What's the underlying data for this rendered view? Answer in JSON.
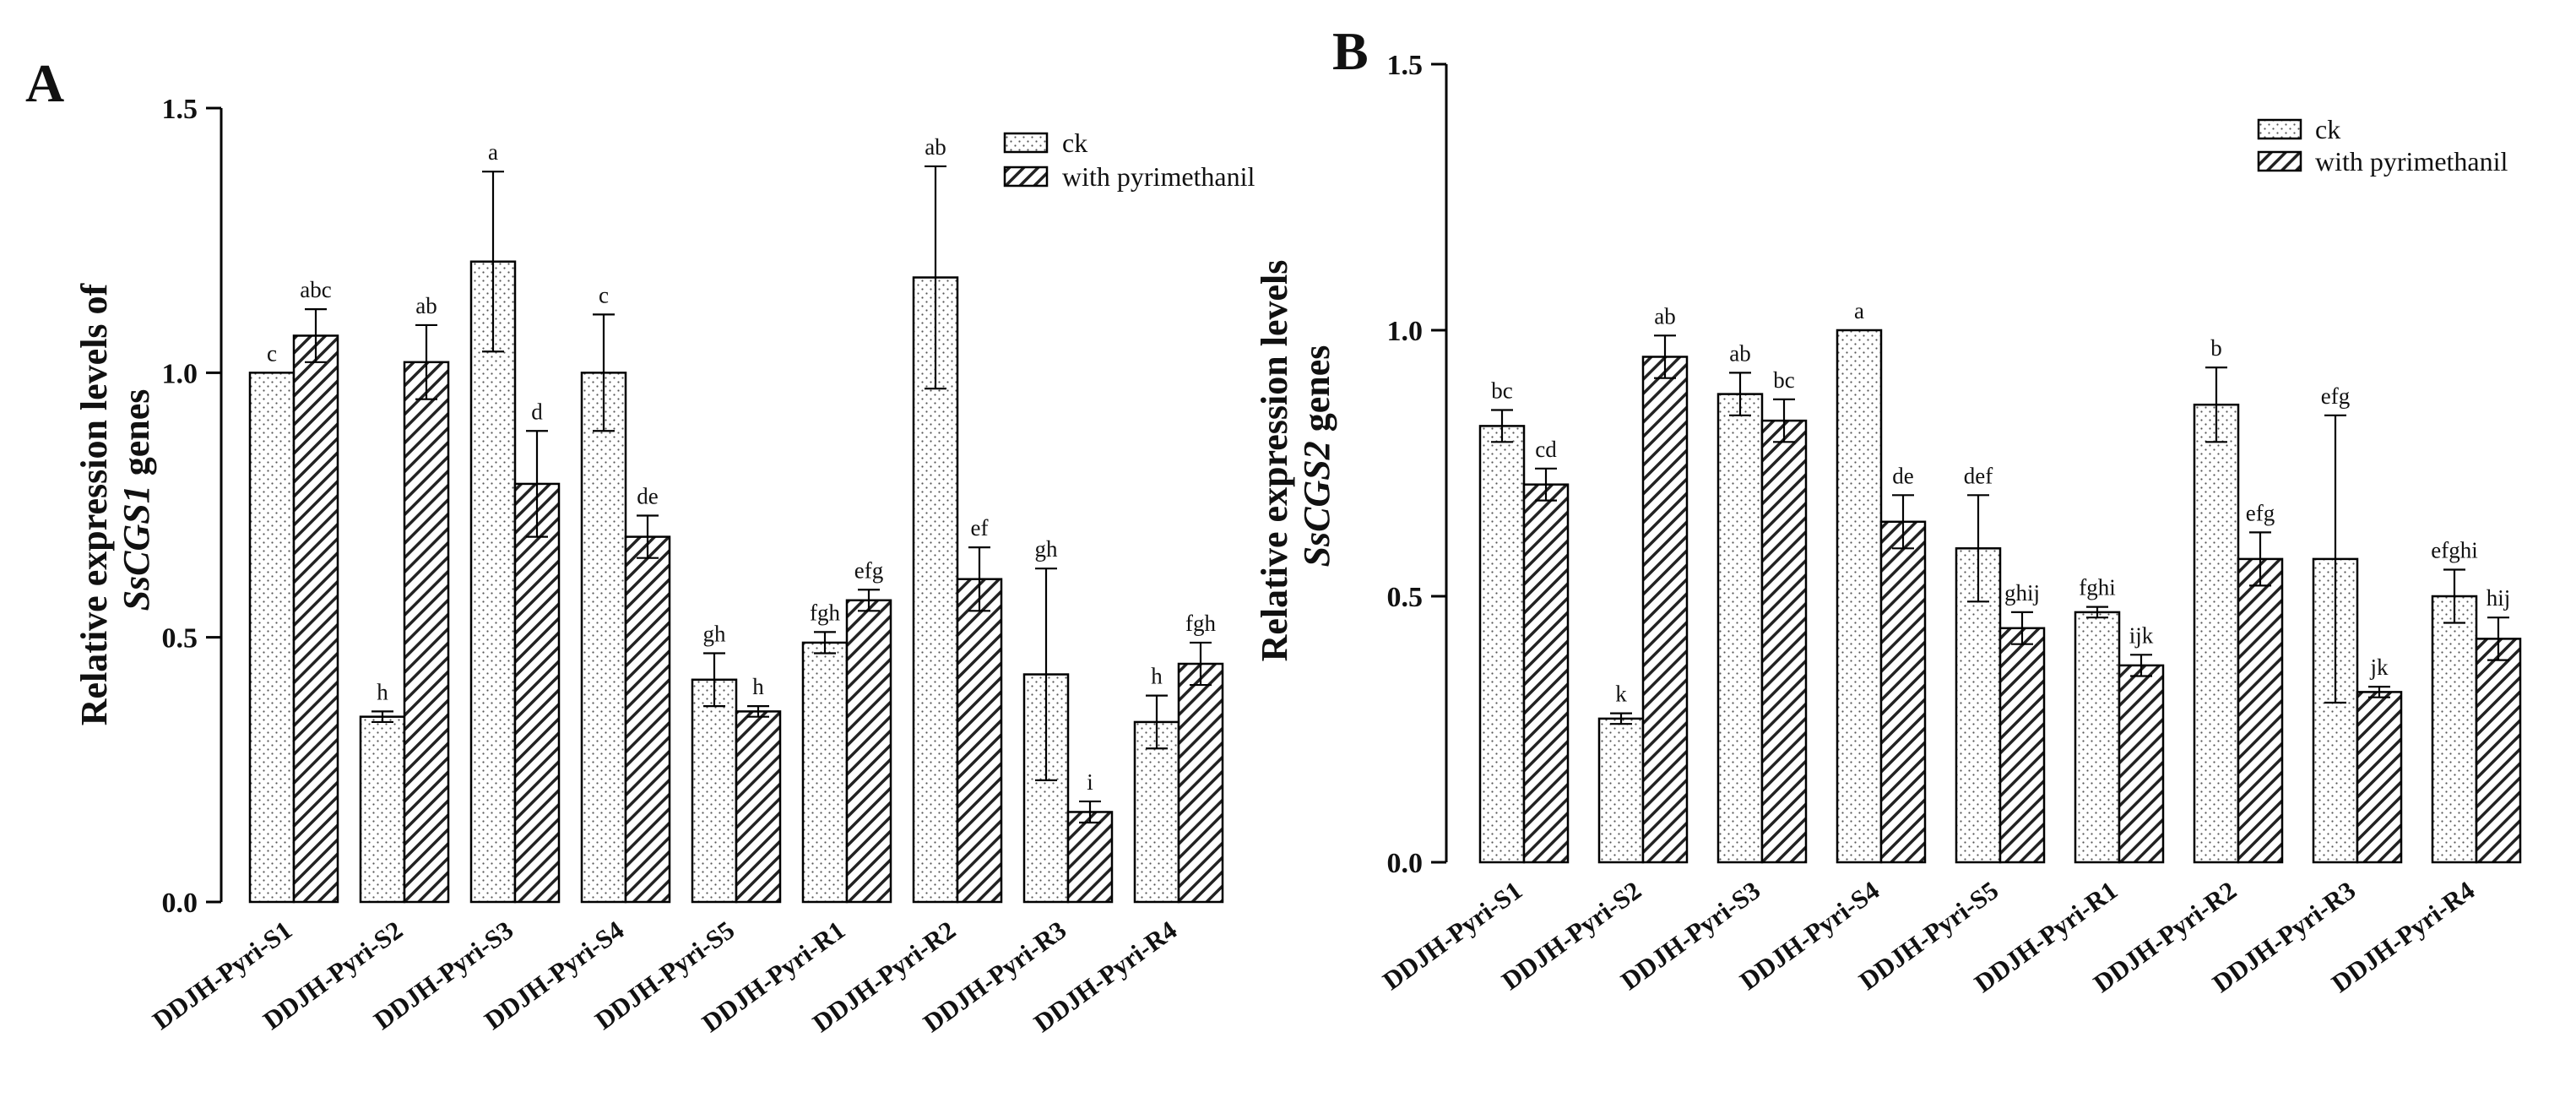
{
  "chart_data": [
    {
      "type": "bar",
      "panel": "A",
      "ylabel_line1": "Relative expression levels of",
      "ylabel_gene": "SsCGS1",
      "ylabel_suffix": " genes",
      "ylim": [
        0,
        1.5
      ],
      "yticks": [
        "0.0",
        "0.5",
        "1.0",
        "1.5"
      ],
      "categories": [
        "DDJH-Pyri-S1",
        "DDJH-Pyri-S2",
        "DDJH-Pyri-S3",
        "DDJH-Pyri-S4",
        "DDJH-Pyri-S5",
        "DDJH-Pyri-R1",
        "DDJH-Pyri-R2",
        "DDJH-Pyri-R3",
        "DDJH-Pyri-R4"
      ],
      "legend": [
        "ck",
        "with pyrimethanil"
      ],
      "series": [
        {
          "name": "ck",
          "values": [
            1.0,
            0.35,
            1.21,
            1.0,
            0.42,
            0.49,
            1.18,
            0.43,
            0.34
          ],
          "errors": [
            0.0,
            0.01,
            0.17,
            0.11,
            0.05,
            0.02,
            0.21,
            0.2,
            0.05
          ],
          "letters": [
            "c",
            "h",
            "a",
            "c",
            "gh",
            "fgh",
            "ab",
            "gh",
            "h"
          ]
        },
        {
          "name": "with pyrimethanil",
          "values": [
            1.07,
            1.02,
            0.79,
            0.69,
            0.36,
            0.57,
            0.61,
            0.17,
            0.45
          ],
          "errors": [
            0.05,
            0.07,
            0.1,
            0.04,
            0.01,
            0.02,
            0.06,
            0.02,
            0.04
          ],
          "letters": [
            "abc",
            "ab",
            "d",
            "de",
            "h",
            "efg",
            "ef",
            "i",
            "fgh"
          ]
        }
      ]
    },
    {
      "type": "bar",
      "panel": "B",
      "ylabel_line1": "Relative expression levels",
      "ylabel_gene": "SsCGS2",
      "ylabel_suffix": " genes",
      "ylim": [
        0,
        1.5
      ],
      "yticks": [
        "0.0",
        "0.5",
        "1.0",
        "1.5"
      ],
      "categories": [
        "DDJH-Pyri-S1",
        "DDJH-Pyri-S2",
        "DDJH-Pyri-S3",
        "DDJH-Pyri-S4",
        "DDJH-Pyri-S5",
        "DDJH-Pyri-R1",
        "DDJH-Pyri-R2",
        "DDJH-Pyri-R3",
        "DDJH-Pyri-R4"
      ],
      "legend": [
        "ck",
        "with pyrimethanil"
      ],
      "series": [
        {
          "name": "ck",
          "values": [
            0.82,
            0.27,
            0.88,
            1.0,
            0.59,
            0.47,
            0.86,
            0.57,
            0.5
          ],
          "errors": [
            0.03,
            0.01,
            0.04,
            0.0,
            0.1,
            0.01,
            0.07,
            0.27,
            0.05
          ],
          "letters": [
            "bc",
            "k",
            "ab",
            "a",
            "def",
            "fghi",
            "b",
            "efg",
            "efghi"
          ]
        },
        {
          "name": "with pyrimethanil",
          "values": [
            0.71,
            0.95,
            0.83,
            0.64,
            0.44,
            0.37,
            0.57,
            0.32,
            0.42
          ],
          "errors": [
            0.03,
            0.04,
            0.04,
            0.05,
            0.03,
            0.02,
            0.05,
            0.01,
            0.04
          ],
          "letters": [
            "cd",
            "ab",
            "bc",
            "de",
            "ghij",
            "ijk",
            "efg",
            "jk",
            "hij"
          ]
        }
      ]
    }
  ]
}
